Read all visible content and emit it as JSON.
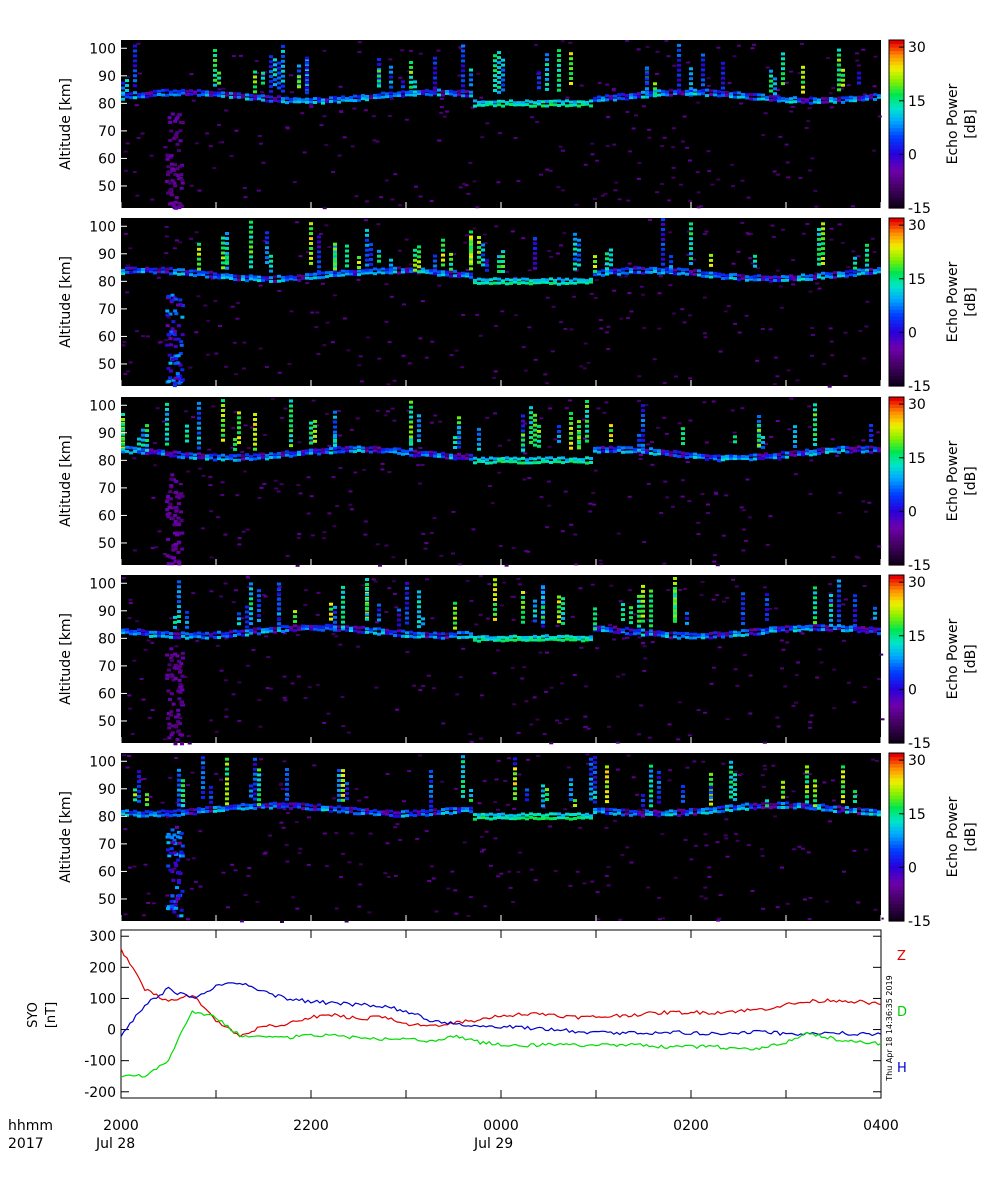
{
  "panels": [
    {
      "ylabel": "Altitude [km]",
      "yticks": [
        "100",
        "90",
        "80",
        "70",
        "60",
        "50"
      ]
    },
    {
      "ylabel": "Altitude [km]",
      "yticks": [
        "100",
        "90",
        "80",
        "70",
        "60",
        "50"
      ]
    },
    {
      "ylabel": "Altitude [km]",
      "yticks": [
        "100",
        "90",
        "80",
        "70",
        "60",
        "50"
      ]
    },
    {
      "ylabel": "Altitude [km]",
      "yticks": [
        "100",
        "90",
        "80",
        "70",
        "60",
        "50"
      ]
    },
    {
      "ylabel": "Altitude [km]",
      "yticks": [
        "100",
        "90",
        "80",
        "70",
        "60",
        "50"
      ]
    }
  ],
  "colorbar": {
    "label_line1": "Echo Power",
    "label_line2": "[dB]",
    "ticks": [
      "30",
      "15",
      "0",
      "-15"
    ]
  },
  "mag": {
    "ylabel_line1": "SYO",
    "ylabel_line2": "[nT]",
    "yticks": [
      "300",
      "200",
      "100",
      "0",
      "-100",
      "-200"
    ],
    "series_labels": {
      "Z": "Z",
      "D": "D",
      "H": "H"
    },
    "colors": {
      "Z": "#dd0000",
      "D": "#00dd00",
      "H": "#0000cc"
    },
    "timestamp": "Thu Apr 18 14:36:35 2019"
  },
  "xaxis": {
    "row_label_1": "hhmm",
    "row_label_2": "2017",
    "ticks": [
      "2000",
      "2200",
      "0000",
      "0200",
      "0400"
    ],
    "dates": [
      "Jul 28",
      "Jul 29"
    ]
  },
  "chart_data": [
    {
      "type": "heatmap",
      "title": "",
      "xlabel": "",
      "ylabel": "Altitude [km]",
      "x_range": [
        "2017-07-28 20:00",
        "2017-07-29 04:00"
      ],
      "ylim": [
        42,
        103
      ],
      "colorbar": {
        "label": "Echo Power [dB]",
        "range": [
          -15,
          32
        ]
      },
      "layers": [
        {
          "altitude": [
            80,
            84
          ],
          "start": "2017-07-28 20:00",
          "end": "2017-07-29 04:00",
          "echo_power_db": 0
        },
        {
          "altitude": [
            78,
            82
          ],
          "start": "2017-07-28 23:40",
          "end": "2017-07-29 00:50",
          "echo_power_db": 10
        }
      ],
      "panels": 5
    },
    {
      "type": "line",
      "title": "",
      "xlabel": "",
      "ylabel": "SYO [nT]",
      "ylim": [
        -220,
        320
      ],
      "x": [
        "20:00",
        "20:15",
        "20:30",
        "20:45",
        "21:00",
        "21:15",
        "21:30",
        "21:45",
        "22:00",
        "22:15",
        "22:30",
        "22:45",
        "23:00",
        "23:15",
        "23:30",
        "23:45",
        "00:00",
        "00:15",
        "00:30",
        "00:45",
        "01:00",
        "01:15",
        "01:30",
        "01:45",
        "02:00",
        "02:15",
        "02:30",
        "02:45",
        "03:00",
        "03:15",
        "03:30",
        "03:45",
        "04:00"
      ],
      "series": [
        {
          "name": "Z",
          "values": [
            260,
            130,
            90,
            110,
            30,
            -20,
            10,
            20,
            40,
            45,
            35,
            40,
            20,
            10,
            20,
            30,
            45,
            50,
            50,
            40,
            40,
            45,
            50,
            55,
            55,
            55,
            60,
            65,
            80,
            90,
            95,
            90,
            80
          ]
        },
        {
          "name": "H",
          "values": [
            -20,
            80,
            130,
            100,
            140,
            150,
            120,
            100,
            90,
            85,
            80,
            75,
            60,
            30,
            20,
            10,
            10,
            5,
            0,
            -5,
            -10,
            -10,
            -10,
            -10,
            -10,
            -15,
            -10,
            -5,
            -15,
            -15,
            -10,
            -15,
            -15
          ]
        },
        {
          "name": "D",
          "values": [
            -150,
            -150,
            -100,
            60,
            40,
            -20,
            -20,
            -25,
            -20,
            -20,
            -25,
            -30,
            -30,
            -40,
            -20,
            -40,
            -50,
            -50,
            -50,
            -50,
            -50,
            -50,
            -50,
            -55,
            -55,
            -55,
            -60,
            -60,
            -40,
            -10,
            -30,
            -40,
            -45
          ]
        }
      ]
    }
  ]
}
